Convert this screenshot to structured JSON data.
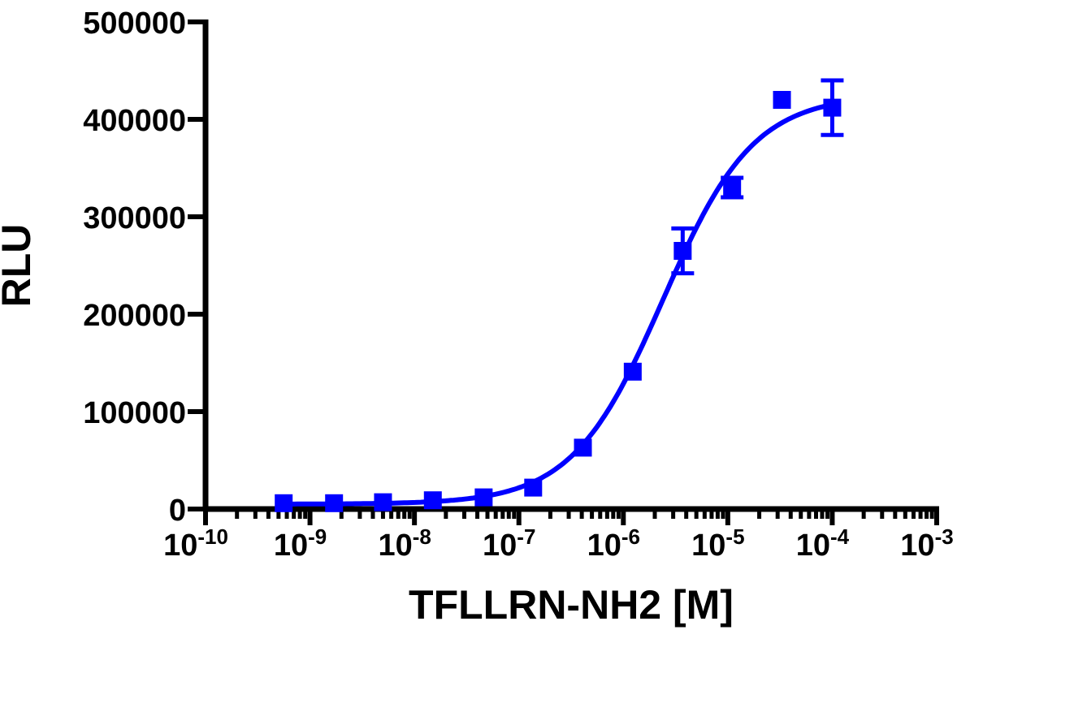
{
  "chart_data": {
    "type": "scatter",
    "title": "",
    "xlabel": "TFLLRN-NH2 [M]",
    "ylabel": "RLU",
    "x_scale": "log",
    "xlim": [
      1e-10,
      0.001
    ],
    "ylim": [
      0,
      500000
    ],
    "grid": false,
    "legend": "none",
    "colors": {
      "series": "#0000ff",
      "axis": "#000000"
    },
    "x_ticks": [
      {
        "value": 1e-10,
        "base": "10",
        "exp": "-10"
      },
      {
        "value": 1e-09,
        "base": "10",
        "exp": "-9"
      },
      {
        "value": 1e-08,
        "base": "10",
        "exp": "-8"
      },
      {
        "value": 1e-07,
        "base": "10",
        "exp": "-7"
      },
      {
        "value": 1e-06,
        "base": "10",
        "exp": "-6"
      },
      {
        "value": 1e-05,
        "base": "10",
        "exp": "-5"
      },
      {
        "value": 0.0001,
        "base": "10",
        "exp": "-4"
      },
      {
        "value": 0.001,
        "base": "10",
        "exp": "-3"
      }
    ],
    "y_ticks": [
      {
        "value": 0,
        "label": "0"
      },
      {
        "value": 100000,
        "label": "100000"
      },
      {
        "value": 200000,
        "label": "200000"
      },
      {
        "value": 300000,
        "label": "300000"
      },
      {
        "value": 400000,
        "label": "400000"
      },
      {
        "value": 500000,
        "label": "500000"
      }
    ],
    "series": [
      {
        "marker": "square",
        "x": [
          5.6e-10,
          1.7e-09,
          5e-09,
          1.5e-08,
          4.6e-08,
          1.37e-07,
          4.1e-07,
          1.23e-06,
          3.7e-06,
          1.1e-05,
          3.3e-05,
          0.0001
        ],
        "y": [
          6000,
          6000,
          7000,
          9000,
          12000,
          22000,
          63000,
          141000,
          265000,
          330000,
          420000,
          412000
        ],
        "error": [
          2000,
          2000,
          2000,
          2000,
          2000,
          3000,
          4000,
          5000,
          23000,
          10000,
          3000,
          28000
        ]
      }
    ],
    "fit": {
      "type": "sigmoidal dose-response",
      "bottom": 5000,
      "top": 425000,
      "log_ec50": -5.62,
      "hill_slope": 1.0
    }
  }
}
